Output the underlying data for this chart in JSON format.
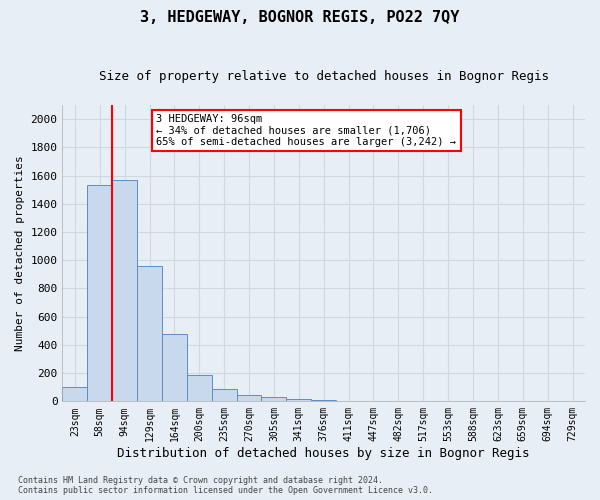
{
  "title": "3, HEDGEWAY, BOGNOR REGIS, PO22 7QY",
  "subtitle": "Size of property relative to detached houses in Bognor Regis",
  "xlabel": "Distribution of detached houses by size in Bognor Regis",
  "ylabel": "Number of detached properties",
  "bar_labels": [
    "23sqm",
    "58sqm",
    "94sqm",
    "129sqm",
    "164sqm",
    "200sqm",
    "235sqm",
    "270sqm",
    "305sqm",
    "341sqm",
    "376sqm",
    "411sqm",
    "447sqm",
    "482sqm",
    "517sqm",
    "553sqm",
    "588sqm",
    "623sqm",
    "659sqm",
    "694sqm",
    "729sqm"
  ],
  "bar_values": [
    100,
    1530,
    1570,
    960,
    480,
    190,
    90,
    45,
    30,
    20,
    10,
    5,
    4,
    3,
    2,
    2,
    1,
    1,
    1,
    1,
    1
  ],
  "bar_color": "#c8d9ee",
  "bar_edgecolor": "#5b8ec4",
  "red_line_index": 2,
  "ylim": [
    0,
    2100
  ],
  "yticks": [
    0,
    200,
    400,
    600,
    800,
    1000,
    1200,
    1400,
    1600,
    1800,
    2000
  ],
  "annotation_title": "3 HEDGEWAY: 96sqm",
  "annotation_line1": "← 34% of detached houses are smaller (1,706)",
  "annotation_line2": "65% of semi-detached houses are larger (3,242) →",
  "footer_line1": "Contains HM Land Registry data © Crown copyright and database right 2024.",
  "footer_line2": "Contains public sector information licensed under the Open Government Licence v3.0.",
  "background_color": "#e8eef5",
  "grid_color": "#d0d8e4",
  "title_fontsize": 11,
  "subtitle_fontsize": 9,
  "xlabel_fontsize": 9,
  "ylabel_fontsize": 8
}
